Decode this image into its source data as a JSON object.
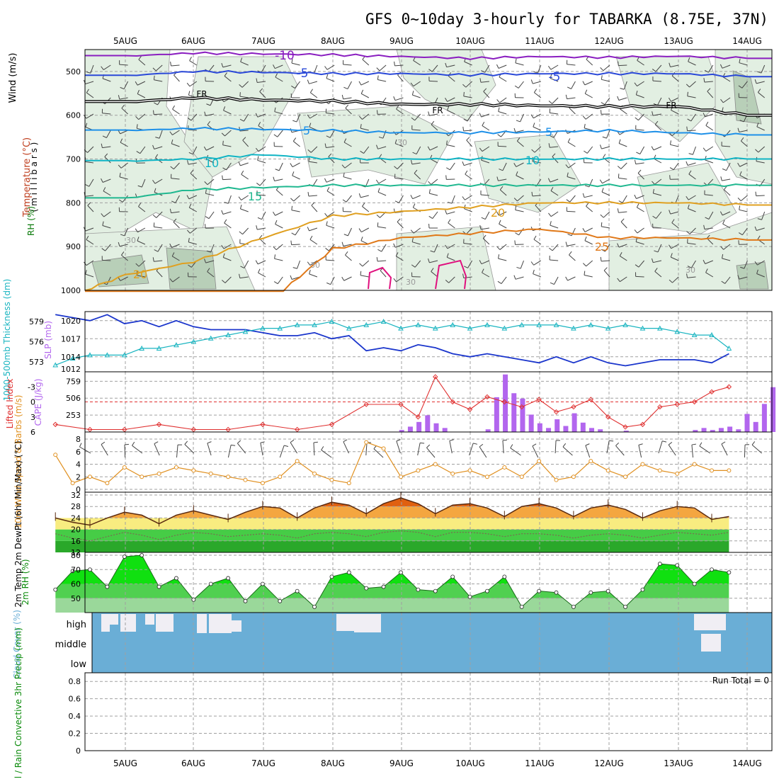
{
  "title": "GFS 0~10day 3-hourly for TABARKA (8.75E, 37N)",
  "colors": {
    "frame": "#000000",
    "grid": "#a0a0a0",
    "rh_fill": "#e2efe2",
    "rh_fill_dark": "#b8cfb8",
    "t_minus10": "#8a1ec0",
    "t_minus5": "#2a48d8",
    "t_5": "#1e90e8",
    "t_10": "#10b4c4",
    "t_15": "#20b890",
    "t_20": "#e0a020",
    "t_25": "#e07818",
    "t_30": "#e0107e",
    "slp_line": "#1a35cc",
    "thickness_line": "#18b4c0",
    "cape_bar": "#b266ee",
    "lifted_index": "#e03030",
    "wind_speed": "#e09020",
    "temp_fill_top": "#e06010",
    "temp_fill_mid": "#f4a640",
    "temp_fill_low": "#f8ec80",
    "dew_band1": "#6ee06e",
    "dew_band2": "#46cc46",
    "dew_band3": "#2aa82a",
    "rh2m_fill1": "#9ad89a",
    "rh2m_fill2": "#50d050",
    "rh2m_fill3": "#10e010",
    "cloud_bg": "#6aaed6",
    "cloud_white": "#f0eef4"
  },
  "axis_dates": [
    "5AUG",
    "6AUG",
    "7AUG",
    "8AUG",
    "9AUG",
    "10AUG",
    "11AUG",
    "12AUG",
    "13AUG",
    "14AUG"
  ],
  "panels": {
    "upper": {
      "ylabels": [
        "Wind (m/s)",
        "Temperature (°C)",
        "RH (%)"
      ],
      "ylabel_units": "( m i l l i b a r s )",
      "levels": [
        500,
        600,
        700,
        800,
        900,
        1000
      ],
      "contour_labels": [
        "-10",
        "-5",
        "-5",
        "FR",
        "FR",
        "FR",
        "5",
        "5",
        "10",
        "10",
        "15",
        "20",
        "25",
        "20",
        "30",
        "30",
        "30",
        "30",
        "30"
      ]
    },
    "slp": {
      "ylabel_left": "1000-500mb Thickness (dm)",
      "ylabel_right": "SLP (mb)",
      "thickness_ticks": [
        "579",
        "576",
        "573"
      ],
      "slp_ticks": [
        "1020",
        "1017",
        "1014",
        "1012"
      ]
    },
    "cape": {
      "ylabel_left": "Lifted Index",
      "ylabel_right": "CAPE (J/kg)",
      "li_ticks": [
        "-3",
        "0",
        "3",
        "6"
      ],
      "cape_ticks": [
        "759",
        "506",
        "253"
      ]
    },
    "wind10m": {
      "ylabel": "10m Wind Speed & Barbs (m/s)",
      "ticks": [
        "8",
        "6",
        "4",
        "2",
        "0"
      ]
    },
    "temp2m": {
      "ylabel": "2m Temp 2m DewPt (6hr Min/Max) (°C)",
      "ticks": [
        "32",
        "28",
        "24",
        "20",
        "16",
        "12"
      ]
    },
    "rh2m": {
      "ylabel": "2m RH (%)",
      "ticks": [
        "80",
        "70",
        "60",
        "50"
      ]
    },
    "cloud": {
      "ylabel": "Cloud Cover (%)",
      "levels": [
        "high",
        "middle",
        "low"
      ]
    },
    "precip": {
      "ylabel": "Total / Rain Convective 3hr Precip (mm)",
      "ticks": [
        "0.8",
        "0.6",
        "0.4",
        "0.2",
        "0"
      ],
      "run_total": "Run Total = 0"
    }
  },
  "chart_data": [
    {
      "type": "line",
      "title": "",
      "ylabel": "Temperature (°C) / RH (%) / Wind (m/s) vs millibars",
      "ylim": [
        1000,
        450
      ],
      "x": [
        "5AUG",
        "6AUG",
        "7AUG",
        "8AUG",
        "9AUG",
        "10AUG",
        "11AUG",
        "12AUG",
        "13AUG",
        "14AUG"
      ],
      "series": [
        {
          "name": "-10",
          "values": [
            465,
            458,
            460,
            462,
            466,
            470,
            466,
            468,
            465,
            470
          ]
        },
        {
          "name": "-5",
          "values": [
            510,
            500,
            502,
            505,
            505,
            508,
            505,
            505,
            505,
            512
          ]
        },
        {
          "name": "FR",
          "values": [
            570,
            560,
            565,
            568,
            575,
            575,
            578,
            580,
            580,
            600
          ]
        },
        {
          "name": "5",
          "values": [
            635,
            630,
            632,
            635,
            640,
            640,
            638,
            635,
            640,
            645
          ]
        },
        {
          "name": "10",
          "values": [
            705,
            700,
            690,
            700,
            700,
            700,
            700,
            700,
            700,
            700
          ]
        },
        {
          "name": "15",
          "values": [
            790,
            770,
            765,
            760,
            760,
            760,
            760,
            760,
            760,
            760
          ]
        },
        {
          "name": "20",
          "values": [
            965,
            935,
            880,
            830,
            820,
            810,
            800,
            800,
            800,
            805
          ]
        },
        {
          "name": "25",
          "values": [
            null,
            null,
            null,
            905,
            880,
            870,
            860,
            880,
            880,
            885
          ]
        }
      ]
    },
    {
      "type": "line",
      "title": "",
      "x_hours": [
        0,
        6,
        12,
        18,
        24,
        30,
        36,
        42,
        48,
        54,
        60,
        66,
        72,
        78,
        84,
        90,
        96,
        102,
        108,
        114,
        120,
        126,
        132,
        138,
        144,
        150,
        156,
        162,
        168,
        174,
        180,
        186,
        192,
        198,
        204,
        210,
        216,
        222,
        228,
        234
      ],
      "series": [
        {
          "name": "SLP (mb)",
          "values": [
            1021,
            1020.5,
            1020,
            1021,
            1019.5,
            1020,
            1019,
            1020,
            1019,
            1018.5,
            1018.5,
            1018.5,
            1018,
            1017.5,
            1017.5,
            1018,
            1017,
            1017.5,
            1015,
            1015.5,
            1015,
            1016,
            1015.5,
            1014.5,
            1014,
            1014.5,
            1014,
            1013.5,
            1013,
            1014,
            1013,
            1014,
            1013,
            1012.5,
            1013,
            1013.5,
            1013.5,
            1013.5,
            1013,
            1014.5
          ]
        },
        {
          "name": "1000-500mb Thickness (dm)",
          "values": [
            572.5,
            573.5,
            574,
            574,
            574,
            575,
            575,
            575.5,
            576,
            576.5,
            577,
            577.5,
            578,
            578,
            578.5,
            578.5,
            579,
            578,
            578.5,
            579,
            578,
            578.5,
            578,
            578.5,
            578,
            578.5,
            578,
            578.5,
            578.5,
            578.5,
            578,
            578.5,
            578,
            578.5,
            578,
            578,
            577.5,
            577,
            577,
            575
          ]
        }
      ]
    },
    {
      "type": "bar",
      "title": "",
      "ylabel": "CAPE (J/kg)",
      "categories": [
        "8AUG+12",
        "8AUG+15",
        "8AUG+18",
        "8AUG+21",
        "9AUG",
        "9AUG+3",
        "9AUG+6",
        "9AUG+9",
        "9AUG+12",
        "9AUG+15",
        "9AUG+18",
        "9AUG+21",
        "10AUG",
        "10AUG+3",
        "10AUG+6",
        "10AUG+9",
        "10AUG+12",
        "10AUG+15",
        "10AUG+18",
        "10AUG+21",
        "11AUG",
        "11AUG+3",
        "11AUG+6",
        "11AUG+9",
        "11AUG+12",
        "11AUG+15",
        "11AUG+18",
        "11AUG+21",
        "12AUG",
        "12AUG+3",
        "12AUG+6",
        "12AUG+9",
        "12AUG+12",
        "12AUG+15",
        "12AUG+18",
        "12AUG+21",
        "13AUG",
        "13AUG+3",
        "13AUG+6",
        "13AUG+9",
        "13AUG+12",
        "13AUG+15",
        "13AUG+18",
        "13AUG+21",
        "14AUG",
        "14AUG+3",
        "14AUG+6",
        "14AUG+9"
      ],
      "values": [
        30,
        80,
        150,
        250,
        130,
        60,
        0,
        0,
        0,
        0,
        40,
        520,
        860,
        580,
        500,
        260,
        130,
        60,
        190,
        90,
        280,
        140,
        60,
        40,
        0,
        0,
        20,
        0,
        0,
        0,
        0,
        0,
        0,
        0,
        30,
        60,
        30,
        60,
        80,
        40,
        270,
        150,
        420,
        670,
        630,
        800,
        760,
        690
      ],
      "ylim": [
        0,
        900
      ]
    },
    {
      "type": "line",
      "title": "",
      "ylabel": "Lifted Index",
      "ylim": [
        6,
        -6
      ],
      "x_hours": [
        0,
        12,
        24,
        36,
        48,
        60,
        72,
        84,
        96,
        108,
        120,
        126,
        132,
        138,
        144,
        150,
        156,
        162,
        168,
        174,
        180,
        186,
        192,
        198,
        204,
        210,
        216,
        222,
        228,
        234
      ],
      "values": [
        4.5,
        5.5,
        5.5,
        4.5,
        5.5,
        5.5,
        4.5,
        5.5,
        4.5,
        0.5,
        0.5,
        3,
        -5,
        0,
        1.5,
        -1,
        0,
        1,
        -0.5,
        2,
        1,
        -0.5,
        3,
        5,
        4.5,
        1,
        0.5,
        0,
        -2,
        -3
      ]
    },
    {
      "type": "line",
      "title": "",
      "ylabel": "10m Wind Speed (m/s)",
      "ylim": [
        0,
        8
      ],
      "x_hours": [
        0,
        6,
        12,
        18,
        24,
        30,
        36,
        42,
        48,
        54,
        60,
        66,
        72,
        78,
        84,
        90,
        96,
        102,
        108,
        114,
        120,
        126,
        132,
        138,
        144,
        150,
        156,
        162,
        168,
        174,
        180,
        186,
        192,
        198,
        204,
        210,
        216,
        222,
        228,
        234
      ],
      "values": [
        5.5,
        1,
        2,
        1,
        3.5,
        2,
        2.5,
        3.5,
        3,
        2.5,
        2,
        1.5,
        1,
        2,
        4.5,
        2.5,
        1.5,
        1,
        7.5,
        6.5,
        2,
        3,
        4,
        2.5,
        3,
        2,
        3.5,
        2,
        4.5,
        1.5,
        2,
        4.5,
        3,
        2,
        4,
        3,
        2.5,
        4,
        3,
        3
      ]
    },
    {
      "type": "area",
      "title": "",
      "ylabel": "2m Temp (°C)",
      "ylim": [
        12,
        33
      ],
      "x_hours": [
        0,
        6,
        12,
        18,
        24,
        30,
        36,
        42,
        48,
        54,
        60,
        66,
        72,
        78,
        84,
        90,
        96,
        102,
        108,
        114,
        120,
        126,
        132,
        138,
        144,
        150,
        156,
        162,
        168,
        174,
        180,
        186,
        192,
        198,
        204,
        210,
        216,
        222,
        228,
        234
      ],
      "series": [
        {
          "name": "2m Temp",
          "values": [
            24,
            22.5,
            21.5,
            24,
            26,
            25,
            22,
            25,
            26.5,
            25,
            23.5,
            26,
            28,
            27.5,
            24,
            27.5,
            29.5,
            28.5,
            25.5,
            29,
            31,
            29,
            25.5,
            28.5,
            29,
            27.5,
            24.5,
            28,
            29,
            27.5,
            24.5,
            27.5,
            28.5,
            27,
            24,
            26.5,
            28,
            27.5,
            23.5,
            24.5
          ]
        },
        {
          "name": "2m DewPt",
          "values": [
            18.5,
            17,
            16,
            17.5,
            19,
            18,
            16.5,
            18,
            19,
            18.5,
            17.5,
            18,
            18.5,
            18,
            17,
            18.5,
            19,
            18.5,
            17.5,
            19,
            19.5,
            19,
            17.5,
            19,
            19,
            18.5,
            17.5,
            18.5,
            18.5,
            18,
            17,
            18,
            18.5,
            18,
            17,
            18,
            19,
            18.5,
            18,
            19
          ]
        }
      ]
    },
    {
      "type": "area",
      "title": "",
      "ylabel": "2m RH (%)",
      "ylim": [
        40,
        82
      ],
      "x_hours": [
        0,
        6,
        12,
        18,
        24,
        30,
        36,
        42,
        48,
        54,
        60,
        66,
        72,
        78,
        84,
        90,
        96,
        102,
        108,
        114,
        120,
        126,
        132,
        138,
        144,
        150,
        156,
        162,
        168,
        174,
        180,
        186,
        192,
        198,
        204,
        210,
        216,
        222,
        228,
        234
      ],
      "values": [
        56,
        69,
        70,
        58,
        79,
        80,
        58,
        64,
        49,
        60,
        64,
        48,
        60,
        48,
        55,
        44,
        65,
        68,
        57,
        58,
        68,
        56,
        55,
        65,
        51,
        55,
        65,
        44,
        55,
        54,
        44,
        54,
        55,
        44,
        56,
        74,
        73,
        60,
        70,
        68
      ]
    },
    {
      "type": "heatmap",
      "title": "",
      "ylabel": "Cloud Cover (%)",
      "rows": [
        "high",
        "middle",
        "low"
      ],
      "x": [
        "5AUG",
        "6AUG",
        "7AUG",
        "8AUG",
        "9AUG",
        "10AUG",
        "11AUG",
        "12AUG",
        "13AUG",
        "14AUG"
      ],
      "values": [
        [
          50,
          20,
          10,
          5,
          40,
          0,
          0,
          0,
          60,
          0
        ],
        [
          0,
          0,
          0,
          0,
          0,
          0,
          0,
          0,
          40,
          0
        ],
        [
          0,
          0,
          0,
          0,
          0,
          0,
          0,
          0,
          0,
          0
        ]
      ]
    },
    {
      "type": "bar",
      "title": "",
      "ylabel": "3hr Precip (mm)",
      "ylim": [
        0,
        0.9
      ],
      "categories": [
        "5AUG",
        "6AUG",
        "7AUG",
        "8AUG",
        "9AUG",
        "10AUG",
        "11AUG",
        "12AUG",
        "13AUG",
        "14AUG"
      ],
      "values": [
        0,
        0,
        0,
        0,
        0,
        0,
        0,
        0,
        0,
        0
      ]
    }
  ]
}
